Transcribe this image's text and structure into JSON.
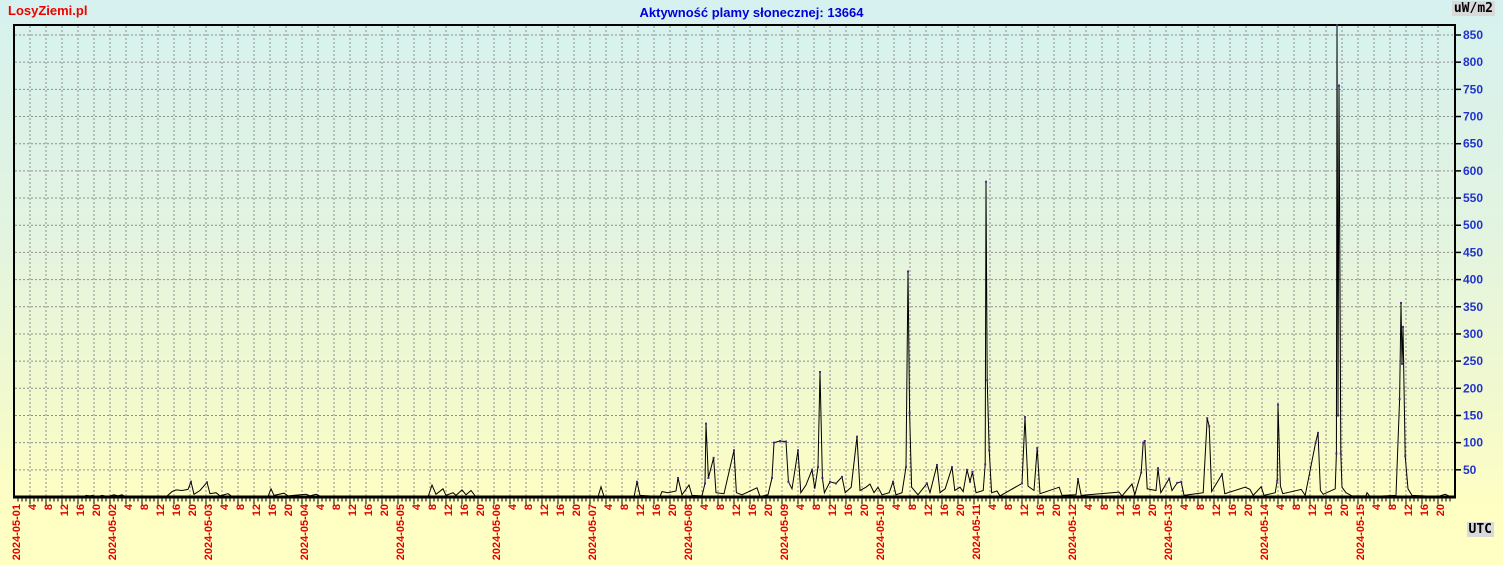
{
  "header": {
    "logo": "LosyZiemi.pl",
    "title": "Aktywność plamy słonecznej: 13664",
    "unit_label": "uW/m2",
    "timezone_label": "UTC"
  },
  "colors": {
    "logo": "#f00000",
    "title": "#0000dd",
    "x_label": "#e10000",
    "y_label": "#2233cc",
    "grid": "#8f8f8f",
    "axis": "#000000",
    "series": "#000000",
    "marker": "#5a1e96",
    "bg_top": "#d6f1ef",
    "bg_bottom": "#ffffc3",
    "label_box_bg": "#d9d9d9"
  },
  "chart_data": {
    "type": "line",
    "title": "Aktywność plamy słonecznej: 13664",
    "ylabel": "uW/m2",
    "xlabel": "UTC",
    "ylim": [
      0,
      868
    ],
    "y_ticks": [
      50,
      100,
      150,
      200,
      250,
      300,
      350,
      400,
      450,
      500,
      550,
      600,
      650,
      700,
      750,
      800,
      850
    ],
    "x_days": [
      "2024-05-01",
      "2024-05-02",
      "2024-05-03",
      "2024-05-04",
      "2024-05-05",
      "2024-05-06",
      "2024-05-07",
      "2024-05-08",
      "2024-05-09",
      "2024-05-10",
      "2024-05-11",
      "2024-05-12",
      "2024-05-13",
      "2024-05-14",
      "2024-05-15"
    ],
    "hour_tick_labels": [
      4,
      8,
      12,
      16,
      20
    ],
    "x_unit": "hours since 2024-05-01 00:00 UTC",
    "grid": true,
    "legend": false,
    "points": [
      [
        0,
        0
      ],
      [
        17.5,
        0
      ],
      [
        18,
        3
      ],
      [
        19,
        2
      ],
      [
        19.7,
        3
      ],
      [
        20.5,
        0
      ],
      [
        22,
        3
      ],
      [
        23.5,
        1
      ],
      [
        25,
        4
      ],
      [
        26,
        2
      ],
      [
        27,
        4
      ],
      [
        28,
        0
      ],
      [
        38,
        0
      ],
      [
        39.5,
        10
      ],
      [
        40.5,
        13
      ],
      [
        42,
        12
      ],
      [
        43.5,
        14
      ],
      [
        44.25,
        28
      ],
      [
        45,
        5
      ],
      [
        46.5,
        12
      ],
      [
        48.25,
        27
      ],
      [
        49,
        6
      ],
      [
        50.5,
        8
      ],
      [
        51.5,
        2
      ],
      [
        53.5,
        6
      ],
      [
        54.5,
        1
      ],
      [
        56,
        0
      ],
      [
        63.5,
        1
      ],
      [
        64.25,
        15
      ],
      [
        65,
        3
      ],
      [
        67.5,
        7
      ],
      [
        68.5,
        2
      ],
      [
        73,
        5
      ],
      [
        74,
        2
      ],
      [
        75.5,
        5
      ],
      [
        77,
        0
      ],
      [
        103.5,
        0
      ],
      [
        104.5,
        22
      ],
      [
        105.5,
        5
      ],
      [
        107.25,
        15
      ],
      [
        108,
        3
      ],
      [
        109.75,
        8
      ],
      [
        110.5,
        3
      ],
      [
        112,
        13
      ],
      [
        113,
        4
      ],
      [
        114.25,
        12
      ],
      [
        115.5,
        0
      ],
      [
        146,
        0
      ],
      [
        146.75,
        19
      ],
      [
        147.5,
        1
      ],
      [
        155,
        0
      ],
      [
        155.75,
        28
      ],
      [
        156.5,
        3
      ],
      [
        161.5,
        1
      ],
      [
        162,
        10
      ],
      [
        163.5,
        8
      ],
      [
        165.5,
        11
      ],
      [
        166,
        35
      ],
      [
        167,
        4
      ],
      [
        168.75,
        22
      ],
      [
        169.5,
        3
      ],
      [
        172,
        2
      ],
      [
        172.75,
        25
      ],
      [
        173,
        135
      ],
      [
        173.6,
        35
      ],
      [
        174.9,
        72
      ],
      [
        175.5,
        8
      ],
      [
        177.5,
        6
      ],
      [
        180,
        86
      ],
      [
        180.6,
        8
      ],
      [
        182,
        4
      ],
      [
        185.75,
        17
      ],
      [
        186.5,
        1
      ],
      [
        188.5,
        4
      ],
      [
        189.5,
        35
      ],
      [
        190,
        100
      ],
      [
        191.5,
        103
      ],
      [
        193,
        102
      ],
      [
        193.6,
        28
      ],
      [
        194.5,
        15
      ],
      [
        196,
        86
      ],
      [
        196.7,
        8
      ],
      [
        198,
        22
      ],
      [
        199.5,
        50
      ],
      [
        200.2,
        15
      ],
      [
        201,
        55
      ],
      [
        201.5,
        230
      ],
      [
        202.1,
        35
      ],
      [
        202.6,
        8
      ],
      [
        204,
        28
      ],
      [
        205.5,
        25
      ],
      [
        207,
        37
      ],
      [
        207.8,
        8
      ],
      [
        209.3,
        18
      ],
      [
        210.75,
        111
      ],
      [
        211.5,
        12
      ],
      [
        213,
        18
      ],
      [
        214,
        24
      ],
      [
        215,
        8
      ],
      [
        216,
        18
      ],
      [
        217,
        4
      ],
      [
        218.8,
        8
      ],
      [
        219.75,
        28
      ],
      [
        220.5,
        4
      ],
      [
        222,
        8
      ],
      [
        223,
        55
      ],
      [
        223.5,
        415
      ],
      [
        223.9,
        155
      ],
      [
        224.4,
        18
      ],
      [
        226,
        4
      ],
      [
        228.25,
        25
      ],
      [
        229,
        8
      ],
      [
        230.75,
        59
      ],
      [
        231.5,
        8
      ],
      [
        232.8,
        15
      ],
      [
        234.5,
        55
      ],
      [
        235.2,
        12
      ],
      [
        236.5,
        18
      ],
      [
        237.3,
        10
      ],
      [
        238.25,
        50
      ],
      [
        239,
        28
      ],
      [
        239.6,
        46
      ],
      [
        240.5,
        8
      ],
      [
        242.3,
        12
      ],
      [
        242.8,
        60
      ],
      [
        243,
        580
      ],
      [
        243.3,
        215
      ],
      [
        243.8,
        86
      ],
      [
        244.4,
        8
      ],
      [
        245.75,
        11
      ],
      [
        246.5,
        2
      ],
      [
        252,
        25
      ],
      [
        252.75,
        147
      ],
      [
        253.5,
        20
      ],
      [
        255,
        12
      ],
      [
        255.8,
        90
      ],
      [
        256.5,
        6
      ],
      [
        261.3,
        18
      ],
      [
        262,
        3
      ],
      [
        265.5,
        4
      ],
      [
        266,
        33
      ],
      [
        266.8,
        3
      ],
      [
        276.25,
        9
      ],
      [
        277,
        2
      ],
      [
        279.5,
        24
      ],
      [
        280.2,
        4
      ],
      [
        281.8,
        45
      ],
      [
        282.3,
        100
      ],
      [
        282.7,
        103
      ],
      [
        283.3,
        15
      ],
      [
        285.5,
        12
      ],
      [
        286,
        53
      ],
      [
        286.7,
        8
      ],
      [
        288.8,
        34
      ],
      [
        289.5,
        12
      ],
      [
        290.8,
        26
      ],
      [
        291.8,
        28
      ],
      [
        292.5,
        3
      ],
      [
        297.3,
        8
      ],
      [
        298.3,
        145
      ],
      [
        298.8,
        130
      ],
      [
        299.4,
        10
      ],
      [
        302,
        42
      ],
      [
        302.7,
        6
      ],
      [
        307.8,
        18
      ],
      [
        309,
        14
      ],
      [
        309.8,
        3
      ],
      [
        311.8,
        19
      ],
      [
        312.5,
        3
      ],
      [
        315.3,
        8
      ],
      [
        315.8,
        30
      ],
      [
        316,
        170
      ],
      [
        316.6,
        20
      ],
      [
        317.2,
        6
      ],
      [
        321.8,
        14
      ],
      [
        322.8,
        3
      ],
      [
        325.4,
        100
      ],
      [
        326,
        118
      ],
      [
        326.6,
        12
      ],
      [
        327.3,
        5
      ],
      [
        330.3,
        15
      ],
      [
        330.6,
        80
      ],
      [
        330.75,
        868
      ],
      [
        331,
        150
      ],
      [
        331.25,
        757
      ],
      [
        331.7,
        80
      ],
      [
        332,
        18
      ],
      [
        333,
        8
      ],
      [
        334.5,
        2
      ],
      [
        338,
        2
      ],
      [
        338.25,
        8
      ],
      [
        339,
        1
      ],
      [
        345.5,
        3
      ],
      [
        346.4,
        180
      ],
      [
        346.75,
        357
      ],
      [
        347,
        245
      ],
      [
        347.25,
        313
      ],
      [
        347.8,
        75
      ],
      [
        348.5,
        15
      ],
      [
        349.5,
        3
      ],
      [
        356,
        1
      ],
      [
        357.8,
        5
      ],
      [
        359,
        1
      ],
      [
        360.2,
        0
      ]
    ]
  }
}
